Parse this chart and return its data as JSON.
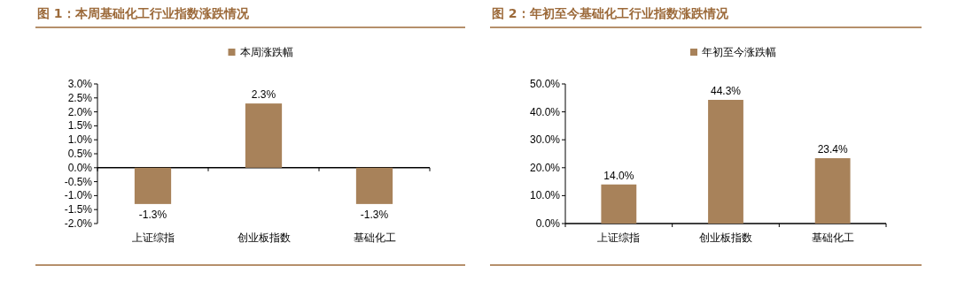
{
  "chart_data": [
    {
      "type": "bar",
      "title": "图 1：本周基础化工行业指数涨跌情况",
      "categories": [
        "上证综指",
        "创业板指数",
        "基础化工"
      ],
      "series": [
        {
          "name": "本周涨跌幅",
          "color": "#a8825a",
          "values": [
            -1.3,
            2.3,
            -1.3
          ],
          "value_labels": [
            "-1.3%",
            "2.3%",
            "-1.3%"
          ]
        }
      ],
      "ylim": [
        -2,
        3
      ],
      "yticks": [
        {
          "value": 3,
          "label": "3.0%"
        },
        {
          "value": 2.5,
          "label": "2.5%"
        },
        {
          "value": 2,
          "label": "2.0%"
        },
        {
          "value": 1.5,
          "label": "1.5%"
        },
        {
          "value": 1,
          "label": "1.0%"
        },
        {
          "value": 0.5,
          "label": "0.5%"
        },
        {
          "value": 0,
          "label": "0.0%"
        },
        {
          "value": -0.5,
          "label": "-0.5%"
        },
        {
          "value": -1,
          "label": "-1.0%"
        },
        {
          "value": -1.5,
          "label": "-1.5%"
        },
        {
          "value": -2,
          "label": "-2.0%"
        }
      ],
      "legend": "top"
    },
    {
      "type": "bar",
      "title": "图 2：年初至今基础化工行业指数涨跌情况",
      "categories": [
        "上证综指",
        "创业板指数",
        "基础化工"
      ],
      "series": [
        {
          "name": "年初至今涨跌幅",
          "color": "#a8825a",
          "values": [
            14.0,
            44.3,
            23.4
          ],
          "value_labels": [
            "14.0%",
            "44.3%",
            "23.4%"
          ]
        }
      ],
      "ylim": [
        0,
        50
      ],
      "yticks": [
        {
          "value": 0,
          "label": "0.0%"
        },
        {
          "value": 10,
          "label": "10.0%"
        },
        {
          "value": 20,
          "label": "20.0%"
        },
        {
          "value": 30,
          "label": "30.0%"
        },
        {
          "value": 40,
          "label": "40.0%"
        },
        {
          "value": 50,
          "label": "50.0%"
        }
      ],
      "legend": "top"
    }
  ]
}
